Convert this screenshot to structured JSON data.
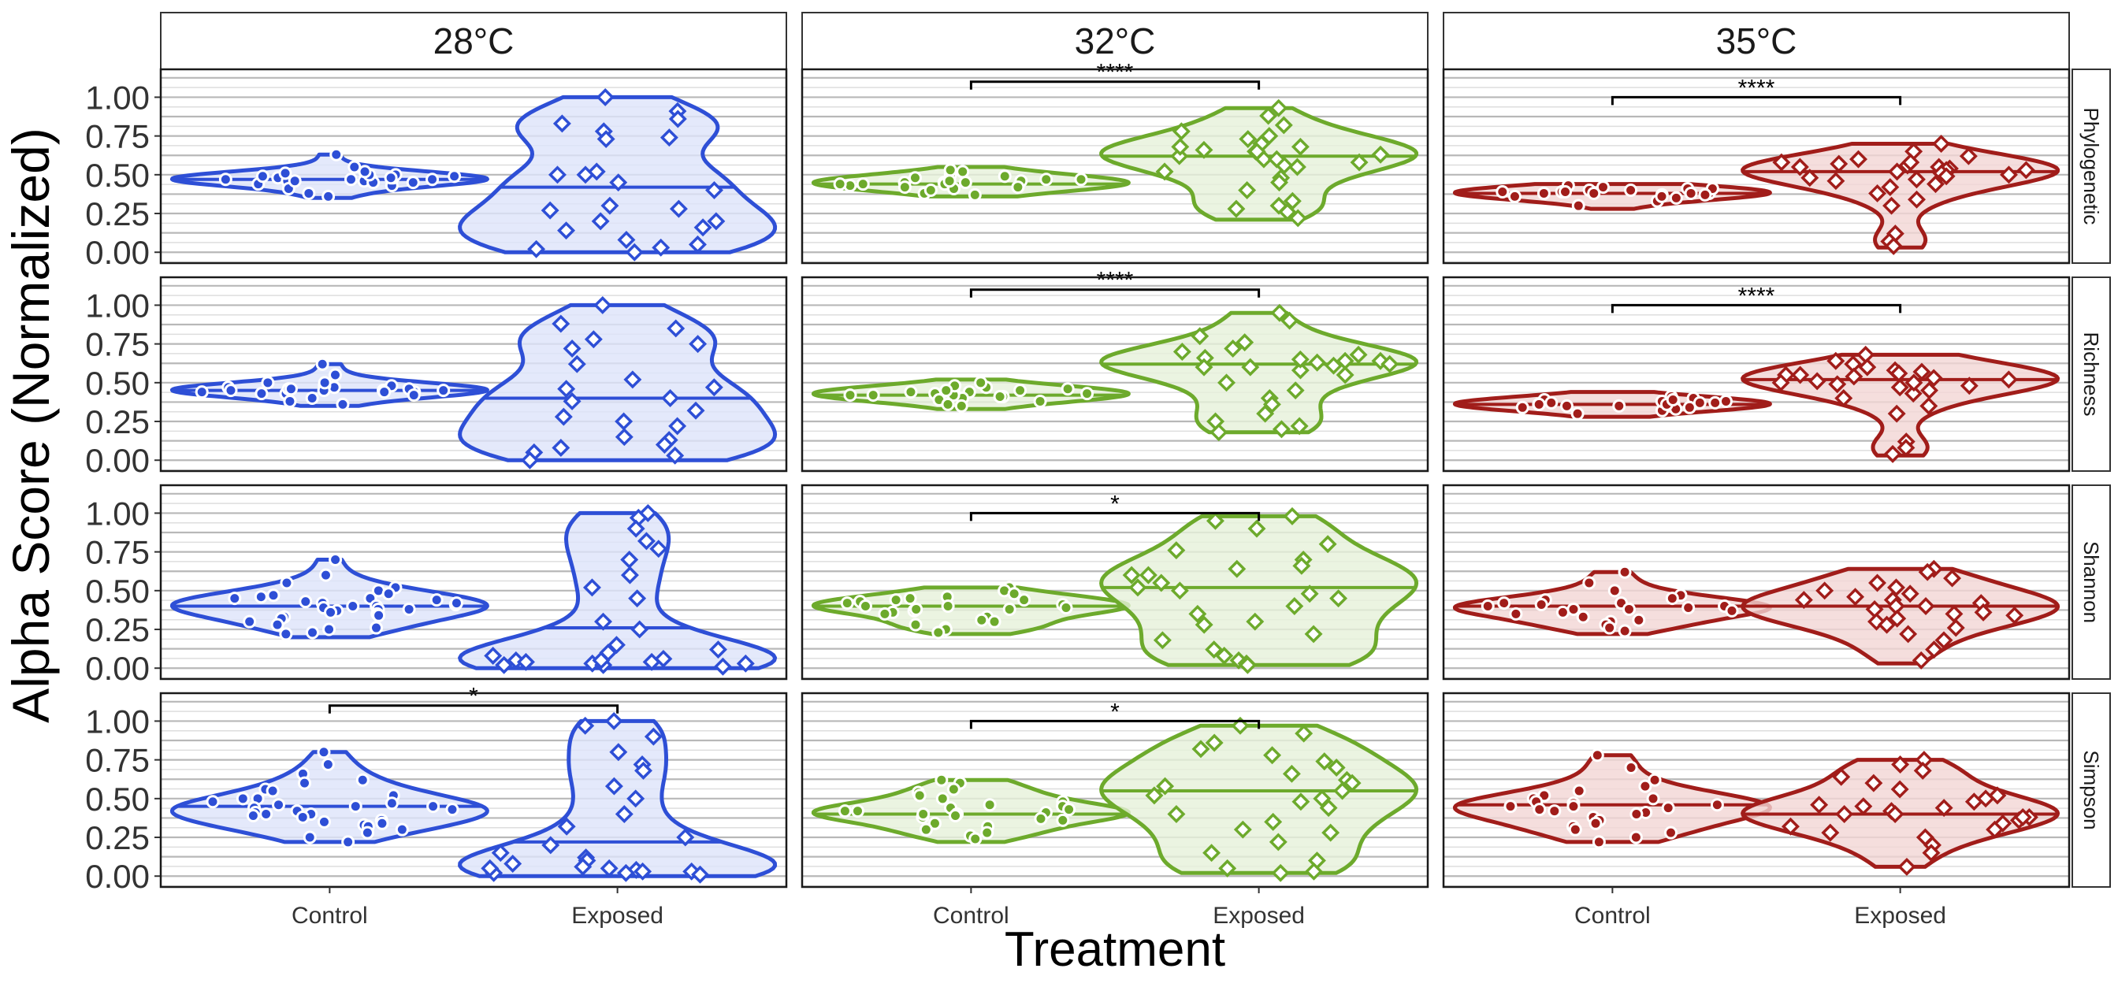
{
  "chart_data": {
    "type": "violin",
    "ylabel": "Alpha Score (Normalized)",
    "xlabel": "Treatment",
    "ylim": [
      -0.07,
      1.18
    ],
    "y_ticks": [
      "0.00",
      "0.25",
      "0.50",
      "0.75",
      "1.00"
    ],
    "y_tick_values": [
      0,
      0.25,
      0.5,
      0.75,
      1.0
    ],
    "categories": [
      "Control",
      "Exposed"
    ],
    "columns": [
      {
        "label": "28°C",
        "color": "#2E4FD6",
        "fill": "#dde4fa"
      },
      {
        "label": "32°C",
        "color": "#6DAA2C",
        "fill": "#e6f1da"
      },
      {
        "label": "35°C",
        "color": "#A11D1A",
        "fill": "#f2d6d5"
      }
    ],
    "rows": [
      "Phylogenetic",
      "Richness",
      "Shannon",
      "Simpson"
    ],
    "significance": [
      {
        "row": 0,
        "col": 1,
        "label": "****",
        "y": 1.1
      },
      {
        "row": 0,
        "col": 2,
        "label": "****",
        "y": 1.0
      },
      {
        "row": 1,
        "col": 1,
        "label": "****",
        "y": 1.1
      },
      {
        "row": 1,
        "col": 2,
        "label": "****",
        "y": 1.0
      },
      {
        "row": 2,
        "col": 1,
        "label": "*",
        "y": 1.0
      },
      {
        "row": 3,
        "col": 0,
        "label": "*",
        "y": 1.1
      },
      {
        "row": 3,
        "col": 1,
        "label": "*",
        "y": 1.0
      }
    ],
    "series": [
      {
        "row": 0,
        "col": 0,
        "treatment": "Control",
        "median": 0.47,
        "range": [
          0.35,
          0.63
        ],
        "points": [
          0.47,
          0.48,
          0.46,
          0.49,
          0.45,
          0.5,
          0.44,
          0.47,
          0.52,
          0.43,
          0.48,
          0.46,
          0.55,
          0.41,
          0.47,
          0.49,
          0.38,
          0.5,
          0.63,
          0.45,
          0.47,
          0.36,
          0.48,
          0.46,
          0.51
        ]
      },
      {
        "row": 0,
        "col": 0,
        "treatment": "Exposed",
        "median": 0.42,
        "range": [
          0.0,
          1.0
        ],
        "points": [
          1.0,
          0.91,
          0.86,
          0.78,
          0.73,
          0.74,
          0.83,
          0.5,
          0.5,
          0.52,
          0.45,
          0.4,
          0.3,
          0.28,
          0.27,
          0.2,
          0.2,
          0.16,
          0.14,
          0.08,
          0.05,
          0.03,
          0.02,
          0.0
        ]
      },
      {
        "row": 0,
        "col": 1,
        "treatment": "Control",
        "median": 0.44,
        "range": [
          0.36,
          0.55
        ],
        "points": [
          0.44,
          0.46,
          0.45,
          0.42,
          0.48,
          0.5,
          0.44,
          0.41,
          0.47,
          0.52,
          0.43,
          0.45,
          0.38,
          0.49,
          0.44,
          0.53,
          0.4,
          0.46,
          0.42,
          0.47,
          0.45,
          0.37
        ]
      },
      {
        "row": 0,
        "col": 1,
        "treatment": "Exposed",
        "median": 0.62,
        "range": [
          0.21,
          0.93
        ],
        "points": [
          0.93,
          0.88,
          0.82,
          0.78,
          0.75,
          0.73,
          0.7,
          0.68,
          0.66,
          0.65,
          0.63,
          0.62,
          0.6,
          0.58,
          0.56,
          0.52,
          0.48,
          0.45,
          0.4,
          0.33,
          0.3,
          0.28,
          0.26,
          0.22,
          0.65,
          0.68,
          0.6,
          0.55
        ]
      },
      {
        "row": 0,
        "col": 2,
        "treatment": "Control",
        "median": 0.38,
        "range": [
          0.28,
          0.44
        ],
        "points": [
          0.38,
          0.4,
          0.37,
          0.39,
          0.41,
          0.36,
          0.38,
          0.42,
          0.35,
          0.39,
          0.37,
          0.43,
          0.33,
          0.4,
          0.38,
          0.3,
          0.39,
          0.36,
          0.41,
          0.38
        ]
      },
      {
        "row": 0,
        "col": 2,
        "treatment": "Exposed",
        "median": 0.52,
        "range": [
          0.03,
          0.7
        ],
        "points": [
          0.7,
          0.65,
          0.62,
          0.6,
          0.58,
          0.57,
          0.56,
          0.55,
          0.54,
          0.53,
          0.52,
          0.51,
          0.5,
          0.49,
          0.48,
          0.47,
          0.46,
          0.44,
          0.42,
          0.38,
          0.34,
          0.3,
          0.12,
          0.07,
          0.04,
          0.55,
          0.58,
          0.53
        ]
      },
      {
        "row": 1,
        "col": 0,
        "treatment": "Control",
        "median": 0.45,
        "range": [
          0.35,
          0.62
        ],
        "points": [
          0.45,
          0.47,
          0.44,
          0.46,
          0.43,
          0.48,
          0.45,
          0.5,
          0.42,
          0.46,
          0.44,
          0.55,
          0.4,
          0.47,
          0.45,
          0.38,
          0.62,
          0.48,
          0.44,
          0.36,
          0.46,
          0.43,
          0.5,
          0.45
        ]
      },
      {
        "row": 1,
        "col": 0,
        "treatment": "Exposed",
        "median": 0.4,
        "range": [
          0.0,
          1.0
        ],
        "points": [
          1.0,
          0.88,
          0.85,
          0.78,
          0.75,
          0.72,
          0.62,
          0.52,
          0.47,
          0.46,
          0.4,
          0.38,
          0.32,
          0.28,
          0.25,
          0.22,
          0.15,
          0.13,
          0.1,
          0.08,
          0.05,
          0.03,
          0.0
        ]
      },
      {
        "row": 1,
        "col": 1,
        "treatment": "Control",
        "median": 0.42,
        "range": [
          0.33,
          0.52
        ],
        "points": [
          0.42,
          0.44,
          0.4,
          0.43,
          0.45,
          0.41,
          0.47,
          0.39,
          0.44,
          0.42,
          0.5,
          0.36,
          0.43,
          0.46,
          0.41,
          0.48,
          0.38,
          0.44,
          0.42,
          0.35,
          0.45
        ]
      },
      {
        "row": 1,
        "col": 1,
        "treatment": "Exposed",
        "median": 0.62,
        "range": [
          0.18,
          0.95
        ],
        "points": [
          0.95,
          0.9,
          0.8,
          0.76,
          0.72,
          0.7,
          0.68,
          0.66,
          0.64,
          0.63,
          0.62,
          0.61,
          0.6,
          0.58,
          0.55,
          0.5,
          0.45,
          0.4,
          0.36,
          0.3,
          0.25,
          0.22,
          0.2,
          0.18,
          0.65,
          0.6,
          0.64
        ]
      },
      {
        "row": 1,
        "col": 2,
        "treatment": "Control",
        "median": 0.36,
        "range": [
          0.28,
          0.44
        ],
        "points": [
          0.36,
          0.38,
          0.35,
          0.37,
          0.39,
          0.34,
          0.36,
          0.4,
          0.33,
          0.37,
          0.35,
          0.41,
          0.32,
          0.38,
          0.36,
          0.3,
          0.37,
          0.34,
          0.39,
          0.36
        ]
      },
      {
        "row": 1,
        "col": 2,
        "treatment": "Exposed",
        "median": 0.52,
        "range": [
          0.03,
          0.68
        ],
        "points": [
          0.68,
          0.64,
          0.62,
          0.6,
          0.58,
          0.56,
          0.55,
          0.54,
          0.53,
          0.52,
          0.51,
          0.5,
          0.49,
          0.48,
          0.47,
          0.45,
          0.43,
          0.4,
          0.35,
          0.3,
          0.12,
          0.08,
          0.04,
          0.55,
          0.57,
          0.5
        ]
      },
      {
        "row": 2,
        "col": 0,
        "treatment": "Control",
        "median": 0.4,
        "range": [
          0.2,
          0.7
        ],
        "points": [
          0.7,
          0.6,
          0.55,
          0.52,
          0.5,
          0.48,
          0.47,
          0.46,
          0.45,
          0.44,
          0.43,
          0.42,
          0.41,
          0.4,
          0.39,
          0.38,
          0.37,
          0.36,
          0.35,
          0.34,
          0.33,
          0.32,
          0.3,
          0.28,
          0.26,
          0.25,
          0.23,
          0.22,
          0.45,
          0.42,
          0.38,
          0.4
        ]
      },
      {
        "row": 2,
        "col": 0,
        "treatment": "Exposed",
        "median": 0.26,
        "range": [
          0.0,
          1.0
        ],
        "points": [
          1.0,
          0.97,
          0.9,
          0.82,
          0.77,
          0.7,
          0.6,
          0.52,
          0.45,
          0.3,
          0.25,
          0.15,
          0.12,
          0.1,
          0.08,
          0.06,
          0.05,
          0.04,
          0.03,
          0.03,
          0.02,
          0.02,
          0.01,
          0.05,
          0.04
        ]
      },
      {
        "row": 2,
        "col": 1,
        "treatment": "Control",
        "median": 0.4,
        "range": [
          0.22,
          0.52
        ],
        "points": [
          0.52,
          0.5,
          0.48,
          0.46,
          0.45,
          0.44,
          0.43,
          0.42,
          0.41,
          0.4,
          0.39,
          0.38,
          0.37,
          0.36,
          0.35,
          0.33,
          0.31,
          0.3,
          0.28,
          0.26,
          0.25,
          0.23,
          0.44,
          0.4,
          0.38
        ]
      },
      {
        "row": 2,
        "col": 1,
        "treatment": "Exposed",
        "median": 0.52,
        "range": [
          0.02,
          0.98
        ],
        "points": [
          0.98,
          0.95,
          0.9,
          0.8,
          0.76,
          0.7,
          0.66,
          0.64,
          0.6,
          0.55,
          0.5,
          0.48,
          0.45,
          0.4,
          0.35,
          0.3,
          0.28,
          0.22,
          0.18,
          0.12,
          0.08,
          0.05,
          0.03,
          0.02,
          0.6,
          0.52
        ]
      },
      {
        "row": 2,
        "col": 2,
        "treatment": "Control",
        "median": 0.4,
        "range": [
          0.22,
          0.62
        ],
        "points": [
          0.62,
          0.55,
          0.5,
          0.47,
          0.45,
          0.44,
          0.42,
          0.41,
          0.4,
          0.39,
          0.38,
          0.37,
          0.36,
          0.35,
          0.33,
          0.31,
          0.3,
          0.28,
          0.26,
          0.24,
          0.42,
          0.4,
          0.38
        ]
      },
      {
        "row": 2,
        "col": 2,
        "treatment": "Exposed",
        "median": 0.4,
        "range": [
          0.03,
          0.64
        ],
        "points": [
          0.64,
          0.62,
          0.58,
          0.55,
          0.52,
          0.5,
          0.48,
          0.46,
          0.44,
          0.42,
          0.4,
          0.38,
          0.36,
          0.34,
          0.32,
          0.3,
          0.28,
          0.26,
          0.22,
          0.18,
          0.12,
          0.05,
          0.44,
          0.4,
          0.35
        ]
      },
      {
        "row": 3,
        "col": 0,
        "treatment": "Control",
        "median": 0.45,
        "range": [
          0.22,
          0.8
        ],
        "points": [
          0.8,
          0.72,
          0.66,
          0.62,
          0.6,
          0.56,
          0.55,
          0.52,
          0.5,
          0.48,
          0.47,
          0.46,
          0.45,
          0.44,
          0.43,
          0.42,
          0.41,
          0.4,
          0.39,
          0.38,
          0.36,
          0.35,
          0.34,
          0.33,
          0.32,
          0.3,
          0.28,
          0.25,
          0.22,
          0.5,
          0.45,
          0.4
        ]
      },
      {
        "row": 3,
        "col": 0,
        "treatment": "Exposed",
        "median": 0.22,
        "range": [
          0.0,
          1.0
        ],
        "points": [
          1.0,
          0.97,
          0.9,
          0.8,
          0.72,
          0.68,
          0.58,
          0.5,
          0.4,
          0.32,
          0.25,
          0.2,
          0.15,
          0.12,
          0.1,
          0.08,
          0.06,
          0.05,
          0.04,
          0.03,
          0.02,
          0.02,
          0.01,
          0.05,
          0.03
        ]
      },
      {
        "row": 3,
        "col": 1,
        "treatment": "Control",
        "median": 0.4,
        "range": [
          0.22,
          0.62
        ],
        "points": [
          0.62,
          0.6,
          0.56,
          0.54,
          0.52,
          0.5,
          0.48,
          0.46,
          0.45,
          0.44,
          0.43,
          0.42,
          0.41,
          0.4,
          0.39,
          0.38,
          0.37,
          0.36,
          0.34,
          0.32,
          0.3,
          0.28,
          0.26,
          0.24,
          0.42,
          0.4
        ]
      },
      {
        "row": 3,
        "col": 1,
        "treatment": "Exposed",
        "median": 0.55,
        "range": [
          0.02,
          0.97
        ],
        "points": [
          0.97,
          0.92,
          0.86,
          0.82,
          0.78,
          0.74,
          0.7,
          0.66,
          0.62,
          0.58,
          0.55,
          0.52,
          0.48,
          0.44,
          0.4,
          0.35,
          0.3,
          0.28,
          0.22,
          0.15,
          0.1,
          0.05,
          0.03,
          0.02,
          0.6,
          0.5
        ]
      },
      {
        "row": 3,
        "col": 2,
        "treatment": "Control",
        "median": 0.46,
        "range": [
          0.22,
          0.78
        ],
        "points": [
          0.78,
          0.7,
          0.62,
          0.58,
          0.55,
          0.52,
          0.5,
          0.48,
          0.47,
          0.46,
          0.45,
          0.44,
          0.43,
          0.42,
          0.41,
          0.4,
          0.38,
          0.36,
          0.34,
          0.32,
          0.3,
          0.28,
          0.25,
          0.22,
          0.45,
          0.5
        ]
      },
      {
        "row": 3,
        "col": 2,
        "treatment": "Exposed",
        "median": 0.4,
        "range": [
          0.06,
          0.75
        ],
        "points": [
          0.75,
          0.72,
          0.68,
          0.64,
          0.6,
          0.56,
          0.52,
          0.5,
          0.48,
          0.46,
          0.44,
          0.42,
          0.4,
          0.38,
          0.36,
          0.34,
          0.32,
          0.3,
          0.28,
          0.25,
          0.2,
          0.15,
          0.06,
          0.45,
          0.4,
          0.38
        ]
      }
    ]
  }
}
